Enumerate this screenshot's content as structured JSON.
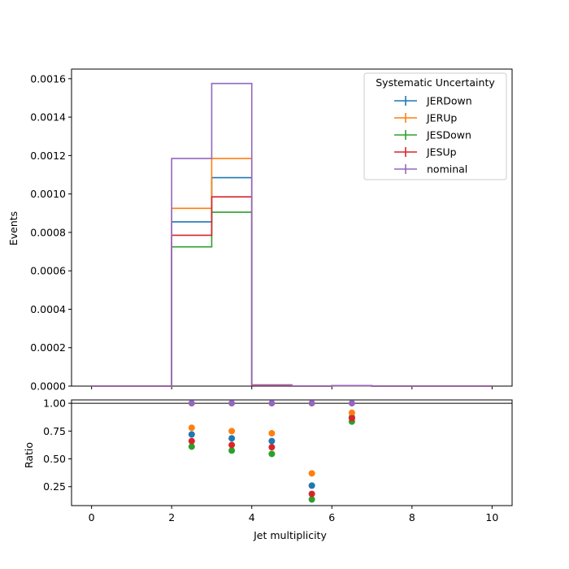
{
  "chart_data": [
    {
      "type": "line",
      "style": "step-histogram",
      "title": "",
      "xlabel": "",
      "ylabel": "Events",
      "bin_edges": [
        0,
        1,
        2,
        3,
        4,
        5,
        6,
        7,
        8,
        9,
        10
      ],
      "xlim": [
        -0.5,
        10.5
      ],
      "ylim": [
        0,
        0.00165
      ],
      "yticks": [
        0.0,
        0.0002,
        0.0004,
        0.0006,
        0.0008,
        0.001,
        0.0012,
        0.0014,
        0.0016
      ],
      "ytick_labels": [
        "0.0000",
        "0.0002",
        "0.0004",
        "0.0006",
        "0.0008",
        "0.0010",
        "0.0012",
        "0.0014",
        "0.0016"
      ],
      "series": [
        {
          "name": "JERDown",
          "color": "#1f77b4",
          "values": [
            0,
            0,
            0.000855,
            0.001085,
            4.5e-06,
            3e-07,
            2.5e-06,
            0,
            0,
            0
          ]
        },
        {
          "name": "JERUp",
          "color": "#ff7f0e",
          "values": [
            0,
            0,
            0.000925,
            0.001185,
            5e-06,
            4e-07,
            2.8e-06,
            0,
            0,
            0
          ]
        },
        {
          "name": "JESDown",
          "color": "#2ca02c",
          "values": [
            0,
            0,
            0.000725,
            0.000905,
            3.7e-06,
            2e-07,
            2.4e-06,
            0,
            0,
            0
          ]
        },
        {
          "name": "JESUp",
          "color": "#d62728",
          "values": [
            0,
            0,
            0.000785,
            0.000985,
            4.1e-06,
            2e-07,
            2.6e-06,
            0,
            0,
            0
          ]
        },
        {
          "name": "nominal",
          "color": "#9467bd",
          "values": [
            0,
            0,
            0.001185,
            0.001575,
            6.8e-06,
            1.1e-06,
            2.9e-06,
            0,
            0,
            0
          ]
        }
      ],
      "legend": {
        "title": "Systematic Uncertainty",
        "placement": "top-right"
      },
      "grid": false
    },
    {
      "type": "scatter",
      "title": "",
      "xlabel": "Jet multiplicity",
      "ylabel": "Ratio",
      "x": [
        2.5,
        3.5,
        4.5,
        5.5,
        6.5
      ],
      "xlim": [
        -0.5,
        10.5
      ],
      "ylim": [
        0.08,
        1.03
      ],
      "xticks": [
        0,
        2,
        4,
        6,
        8,
        10
      ],
      "xtick_labels": [
        "0",
        "2",
        "4",
        "6",
        "8",
        "10"
      ],
      "yticks": [
        0.25,
        0.5,
        0.75,
        1.0
      ],
      "ytick_labels": [
        "0.25",
        "0.50",
        "0.75",
        "1.00"
      ],
      "reference_line": 1.0,
      "series": [
        {
          "name": "JERDown",
          "color": "#1f77b4",
          "values": [
            0.72,
            0.685,
            0.66,
            0.26,
            0.875
          ]
        },
        {
          "name": "JERUp",
          "color": "#ff7f0e",
          "values": [
            0.78,
            0.75,
            0.73,
            0.37,
            0.915
          ]
        },
        {
          "name": "JESDown",
          "color": "#2ca02c",
          "values": [
            0.61,
            0.575,
            0.545,
            0.135,
            0.835
          ]
        },
        {
          "name": "JESUp",
          "color": "#d62728",
          "values": [
            0.66,
            0.625,
            0.605,
            0.185,
            0.865
          ]
        },
        {
          "name": "nominal",
          "color": "#9467bd",
          "values": [
            1.0,
            1.0,
            1.0,
            1.0,
            1.0
          ]
        }
      ],
      "grid": false
    }
  ]
}
